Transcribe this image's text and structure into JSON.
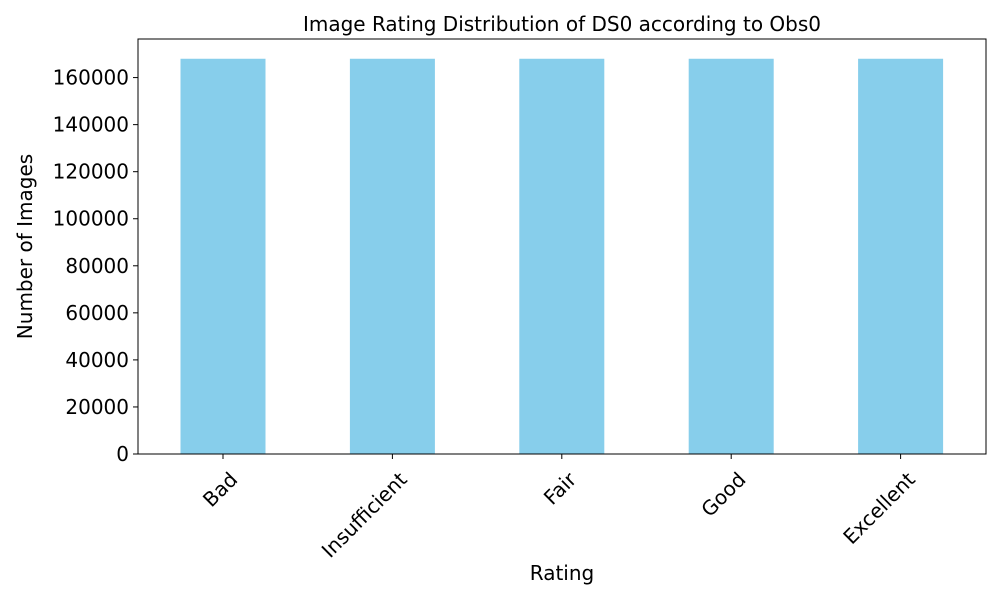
{
  "chart_data": {
    "type": "bar",
    "title": "Image Rating Distribution of DS0 according to Obs0",
    "xlabel": "Rating",
    "ylabel": "Number of Images",
    "categories": [
      "Bad",
      "Insufficient",
      "Fair",
      "Good",
      "Excellent"
    ],
    "values": [
      168000,
      168000,
      168000,
      168000,
      168000
    ],
    "ylim": [
      0,
      176400
    ],
    "yticks": [
      0,
      20000,
      40000,
      60000,
      80000,
      100000,
      120000,
      140000,
      160000
    ],
    "bar_color": "#87CEEB",
    "grid": false,
    "legend": "none",
    "xtick_rotation_deg": 45
  }
}
